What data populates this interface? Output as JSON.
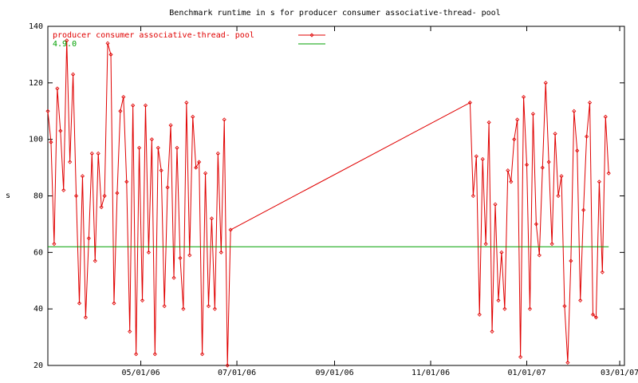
{
  "chart_data": {
    "type": "line",
    "title": "Benchmark runtime in s for producer consumer associative-thread-  pool",
    "y_label": "s",
    "x_format": "MM/DD/YY",
    "xlim": [
      "03/03/06",
      "03/04/07"
    ],
    "xticks": [
      "05/01/06",
      "07/01/06",
      "09/01/06",
      "11/01/06",
      "01/01/07",
      "03/01/07"
    ],
    "ylim": [
      20,
      140
    ],
    "yticks": [
      20,
      40,
      60,
      80,
      100,
      120,
      140
    ],
    "grid": false,
    "legend": "top-left",
    "series": [
      {
        "name": "producer consumer associative-thread-  pool",
        "color": "#e00000",
        "markers": true,
        "x": [
          "03/03/06",
          "03/05/06",
          "03/07/06",
          "03/09/06",
          "03/11/06",
          "03/13/06",
          "03/15/06",
          "03/17/06",
          "03/19/06",
          "03/21/06",
          "03/23/06",
          "03/25/06",
          "03/27/06",
          "03/29/06",
          "03/31/06",
          "04/02/06",
          "04/04/06",
          "04/06/06",
          "04/08/06",
          "04/10/06",
          "04/12/06",
          "04/14/06",
          "04/16/06",
          "04/18/06",
          "04/20/06",
          "04/22/06",
          "04/24/06",
          "04/26/06",
          "04/28/06",
          "04/30/06",
          "05/02/06",
          "05/04/06",
          "05/06/06",
          "05/08/06",
          "05/10/06",
          "05/12/06",
          "05/14/06",
          "05/16/06",
          "05/18/06",
          "05/20/06",
          "05/22/06",
          "05/24/06",
          "05/26/06",
          "05/28/06",
          "05/30/06",
          "06/01/06",
          "06/03/06",
          "06/05/06",
          "06/07/06",
          "06/09/06",
          "06/11/06",
          "06/13/06",
          "06/15/06",
          "06/17/06",
          "06/19/06",
          "06/21/06",
          "06/23/06",
          "06/25/06",
          "06/27/06",
          "11/26/06",
          "11/28/06",
          "11/30/06",
          "12/02/06",
          "12/04/06",
          "12/06/06",
          "12/08/06",
          "12/10/06",
          "12/12/06",
          "12/14/06",
          "12/16/06",
          "12/18/06",
          "12/20/06",
          "12/22/06",
          "12/24/06",
          "12/26/06",
          "12/28/06",
          "12/30/06",
          "01/01/07",
          "01/03/07",
          "01/05/07",
          "01/07/07",
          "01/09/07",
          "01/11/07",
          "01/13/07",
          "01/15/07",
          "01/17/07",
          "01/19/07",
          "01/21/07",
          "01/23/07",
          "01/25/07",
          "01/27/07",
          "01/29/07",
          "01/31/07",
          "02/02/07",
          "02/04/07",
          "02/06/07",
          "02/08/07",
          "02/10/07",
          "02/12/07",
          "02/14/07",
          "02/16/07",
          "02/18/07",
          "02/20/07",
          "02/22/07"
        ],
        "values": [
          110,
          99,
          63,
          118,
          103,
          82,
          135,
          92,
          123,
          80,
          42,
          87,
          37,
          65,
          95,
          57,
          95,
          76,
          80,
          134,
          130,
          42,
          81,
          110,
          115,
          85,
          32,
          112,
          24,
          97,
          43,
          112,
          60,
          100,
          24,
          97,
          89,
          41,
          83,
          105,
          51,
          97,
          58,
          40,
          113,
          59,
          108,
          90,
          92,
          24,
          88,
          41,
          72,
          40,
          95,
          60,
          107,
          20,
          68,
          113,
          80,
          94,
          38,
          93,
          63,
          106,
          32,
          77,
          43,
          60,
          40,
          89,
          85,
          100,
          107,
          23,
          115,
          91,
          40,
          109,
          70,
          59,
          90,
          120,
          92,
          63,
          102,
          80,
          87,
          41,
          21,
          57,
          110,
          96,
          43,
          75,
          101,
          113,
          38,
          37,
          85,
          53,
          108,
          88
        ]
      },
      {
        "name": "4.9.0",
        "color": "#00a000",
        "markers": false,
        "x": [
          "03/03/06",
          "02/22/07"
        ],
        "values": [
          62,
          62
        ]
      }
    ]
  }
}
